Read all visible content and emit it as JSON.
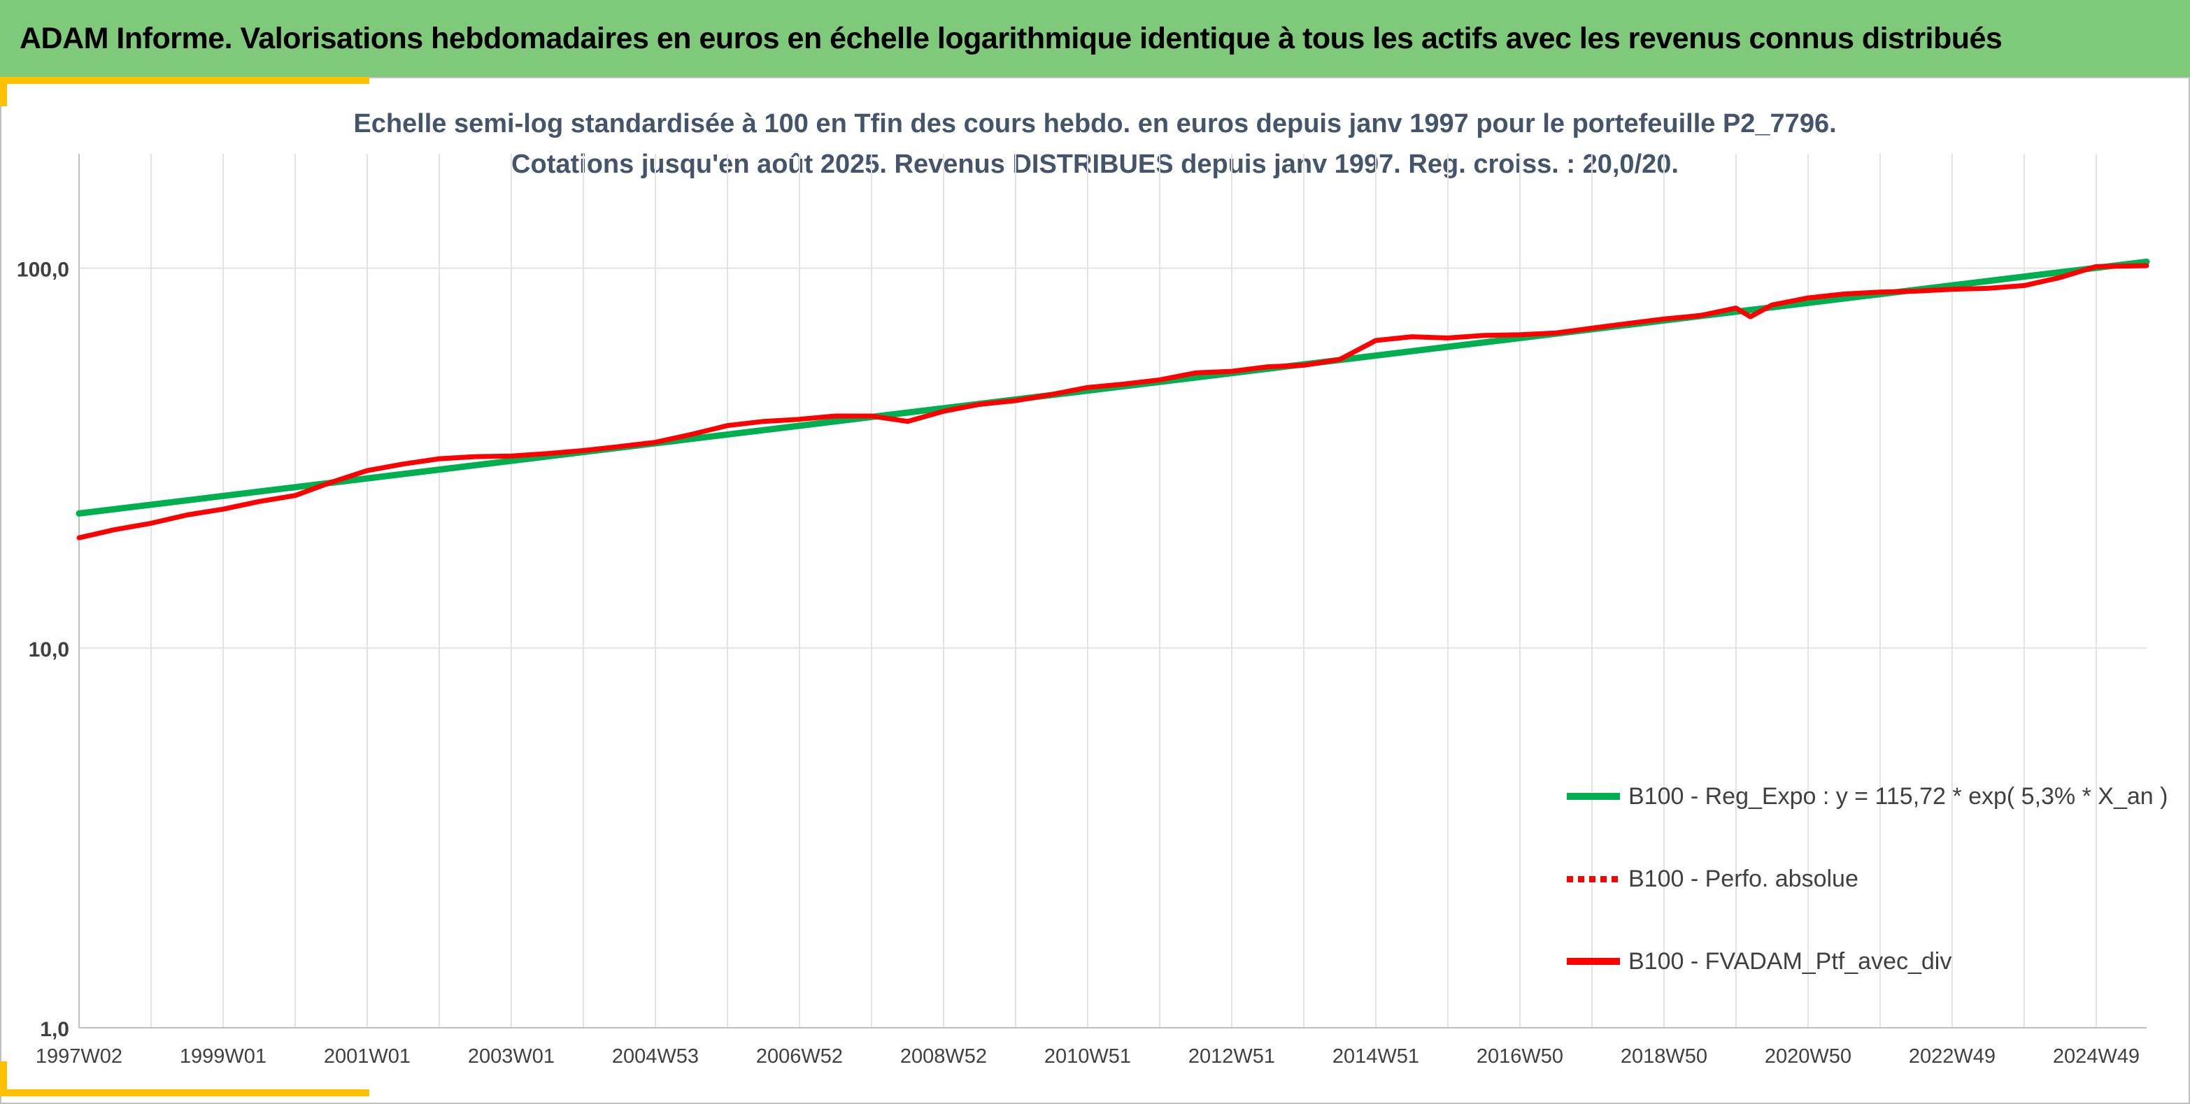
{
  "header": {
    "title": "ADAM Informe. Valorisations hebdomadaires en euros en échelle logarithmique identique à tous les actifs avec les revenus connus distribués"
  },
  "colors": {
    "header_bg": "#7ec97a",
    "accent_corner": "#ffc000",
    "regression": "#00b050",
    "portfolio": "#ff0000",
    "grid": "#d9d9d9",
    "title_text": "#44546a"
  },
  "chart_data": {
    "type": "line",
    "title_lines": [
      "Echelle semi-log standardisée à 100 en Tfin des cours hebdo. en euros depuis janv 1997 pour le portefeuille P2_7796.",
      "Cotations jusqu'en août 2025. Revenus DISTRIBUES depuis janv 1997. Reg. croiss. : 20,0/20."
    ],
    "y_scale": "log",
    "ylim": [
      1,
      200
    ],
    "y_ticks": [
      1,
      10,
      100
    ],
    "y_tick_labels": [
      "1,0",
      "10,0",
      "100,0"
    ],
    "x_range": [
      1997.0,
      2025.7
    ],
    "x_tick_labels": [
      "1997W02",
      "1999W01",
      "2001W01",
      "2003W01",
      "2004W53",
      "2006W52",
      "2008W52",
      "2010W51",
      "2012W51",
      "2014W51",
      "2016W50",
      "2018W50",
      "2020W50",
      "2022W49",
      "2024W49"
    ],
    "x_tick_years": [
      1997.0,
      1999.0,
      2001.0,
      2003.0,
      2005.0,
      2007.0,
      2009.0,
      2011.0,
      2013.0,
      2015.0,
      2017.0,
      2019.0,
      2021.0,
      2023.0,
      2025.0
    ],
    "grid": "vertical",
    "legend_position": "bottom-right",
    "series": [
      {
        "name": "B100 - Reg_Expo : y = 115,72 * exp( 5,3% *  X_an )",
        "style": "solid",
        "color": "#00b050",
        "x": [
          1997.0,
          2025.7
        ],
        "y": [
          22.6,
          104.0
        ]
      },
      {
        "name": "B100 - Perfo. absolue",
        "style": "dotted",
        "color": "#ff0000",
        "x": [],
        "y": []
      },
      {
        "name": "B100 - FVADAM_Ptf_avec_div",
        "style": "solid",
        "color": "#ff0000",
        "x": [
          1997.0,
          1997.5,
          1998.0,
          1998.5,
          1999.0,
          1999.5,
          2000.0,
          2000.5,
          2001.0,
          2001.5,
          2002.0,
          2002.5,
          2003.0,
          2003.5,
          2004.0,
          2004.5,
          2005.0,
          2005.5,
          2006.0,
          2006.5,
          2007.0,
          2007.5,
          2008.0,
          2008.5,
          2009.0,
          2009.5,
          2010.0,
          2010.5,
          2011.0,
          2011.5,
          2012.0,
          2012.5,
          2013.0,
          2013.5,
          2014.0,
          2014.5,
          2015.0,
          2015.5,
          2016.0,
          2016.5,
          2017.0,
          2017.5,
          2018.0,
          2018.5,
          2019.0,
          2019.5,
          2020.0,
          2020.2,
          2020.5,
          2021.0,
          2021.5,
          2022.0,
          2022.5,
          2023.0,
          2023.5,
          2024.0,
          2024.5,
          2025.0,
          2025.7
        ],
        "y": [
          19.5,
          20.5,
          21.3,
          22.4,
          23.2,
          24.3,
          25.2,
          27.3,
          29.3,
          30.5,
          31.5,
          31.9,
          32.0,
          32.5,
          33.1,
          33.9,
          34.8,
          36.5,
          38.5,
          39.5,
          40.0,
          40.8,
          40.8,
          39.5,
          42.0,
          43.8,
          44.8,
          46.5,
          48.5,
          49.5,
          50.8,
          53.0,
          53.5,
          55.0,
          55.5,
          57.5,
          64.5,
          66.0,
          65.5,
          66.5,
          66.8,
          67.5,
          69.5,
          71.5,
          73.5,
          75.0,
          78.5,
          74.5,
          80.0,
          83.5,
          85.5,
          86.5,
          87.0,
          88.0,
          88.5,
          90.0,
          94.5,
          101.0,
          101.5
        ]
      }
    ]
  }
}
